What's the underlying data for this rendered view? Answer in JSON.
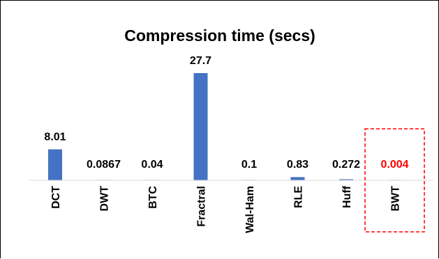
{
  "chart_data": {
    "type": "bar",
    "title": "Compression time (secs)",
    "categories": [
      "DCT",
      "DWT",
      "BTC",
      "Fractral",
      "Wal-Ham",
      "RLE",
      "Huff",
      "BWT"
    ],
    "values": [
      8.01,
      0.0867,
      0.04,
      27.7,
      0.1,
      0.83,
      0.272,
      0.004
    ],
    "data_labels": [
      "8.01",
      "0.0867",
      "0.04",
      "27.7",
      "0.1",
      "0.83",
      "0.272",
      "0.004"
    ],
    "xlabel": "",
    "ylabel": "",
    "ylim": [
      0,
      27.7
    ],
    "grid": false,
    "legend": "none",
    "highlighted_category": "BWT"
  },
  "colors": {
    "bar": "#4472C4",
    "label": "#000000",
    "highlight": "#FF0000",
    "axis": "#D9D9D9",
    "frame": "#000000"
  }
}
